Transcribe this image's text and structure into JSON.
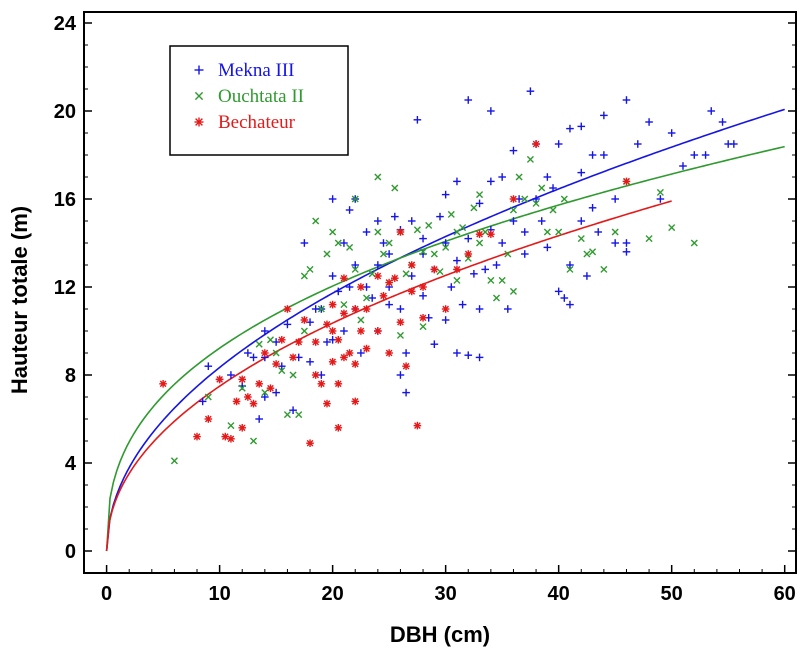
{
  "chart_data": {
    "type": "scatter",
    "xlabel": "DBH (cm)",
    "ylabel": "Hauteur totale (m)",
    "xlim": [
      -2,
      61
    ],
    "ylim": [
      -1,
      24.5
    ],
    "xticks": [
      0,
      10,
      20,
      30,
      40,
      50,
      60
    ],
    "yticks": [
      0,
      4,
      8,
      12,
      16,
      20,
      24
    ],
    "grid": false,
    "legend_position": "top-left",
    "series": [
      {
        "name": "Mekna III",
        "marker": "+",
        "color": "#1515e6",
        "points": [
          [
            8.5,
            6.8
          ],
          [
            9,
            8.4
          ],
          [
            10,
            7.8
          ],
          [
            11,
            8
          ],
          [
            12,
            7.5
          ],
          [
            12.5,
            9
          ],
          [
            13,
            8.8
          ],
          [
            13.5,
            6
          ],
          [
            14,
            7
          ],
          [
            14,
            8.8
          ],
          [
            14,
            10
          ],
          [
            15,
            9.5
          ],
          [
            15,
            7.2
          ],
          [
            15.5,
            8.4
          ],
          [
            16,
            10.3
          ],
          [
            16.5,
            6.4
          ],
          [
            17,
            8.8
          ],
          [
            17.5,
            14
          ],
          [
            18,
            8.6
          ],
          [
            18,
            10.4
          ],
          [
            18.5,
            11
          ],
          [
            19,
            8
          ],
          [
            19,
            11
          ],
          [
            19.5,
            9.5
          ],
          [
            20,
            9.6
          ],
          [
            20,
            12.5
          ],
          [
            20,
            16
          ],
          [
            20.5,
            11.8
          ],
          [
            21,
            10
          ],
          [
            21,
            14
          ],
          [
            21.5,
            15.5
          ],
          [
            21.5,
            12
          ],
          [
            22,
            13
          ],
          [
            22,
            11
          ],
          [
            22,
            16
          ],
          [
            22.5,
            9
          ],
          [
            23,
            14.5
          ],
          [
            23,
            12
          ],
          [
            23.5,
            11.5
          ],
          [
            24,
            13
          ],
          [
            24,
            10
          ],
          [
            24,
            15
          ],
          [
            24.5,
            14
          ],
          [
            25,
            12
          ],
          [
            25,
            11.2
          ],
          [
            25,
            13.5
          ],
          [
            25.5,
            15.2
          ],
          [
            26,
            11
          ],
          [
            26,
            8
          ],
          [
            26,
            14.6
          ],
          [
            26.5,
            9
          ],
          [
            26.5,
            7.2
          ],
          [
            27,
            12.5
          ],
          [
            27,
            15
          ],
          [
            27.5,
            19.6
          ],
          [
            28,
            11.6
          ],
          [
            28,
            13.5
          ],
          [
            28,
            14.2
          ],
          [
            28.5,
            10.6
          ],
          [
            29,
            12.8
          ],
          [
            29,
            9.4
          ],
          [
            29.5,
            15.2
          ],
          [
            30,
            14
          ],
          [
            30,
            10.5
          ],
          [
            30,
            16.2
          ],
          [
            30.5,
            12
          ],
          [
            31,
            13.2
          ],
          [
            31,
            9
          ],
          [
            31,
            16.8
          ],
          [
            31.5,
            11.2
          ],
          [
            32,
            20.5
          ],
          [
            32,
            14.2
          ],
          [
            32,
            8.9
          ],
          [
            32.5,
            12.6
          ],
          [
            33,
            15.8
          ],
          [
            33,
            11
          ],
          [
            33,
            8.8
          ],
          [
            33.5,
            12.8
          ],
          [
            34,
            14.6
          ],
          [
            34,
            16.8
          ],
          [
            34,
            20
          ],
          [
            34.5,
            13
          ],
          [
            35,
            14
          ],
          [
            35,
            17
          ],
          [
            35.5,
            11
          ],
          [
            36,
            18.2
          ],
          [
            36,
            15
          ],
          [
            36.5,
            16
          ],
          [
            37,
            13.5
          ],
          [
            37,
            14.5
          ],
          [
            37.5,
            20.9
          ],
          [
            38,
            16
          ],
          [
            38,
            18.5
          ],
          [
            38.5,
            15
          ],
          [
            39,
            13.8
          ],
          [
            39,
            17
          ],
          [
            39.5,
            16.5
          ],
          [
            40,
            18.5
          ],
          [
            40,
            11.8
          ],
          [
            40.5,
            11.5
          ],
          [
            41,
            19.2
          ],
          [
            41,
            13
          ],
          [
            41,
            11.2
          ],
          [
            42,
            19.3
          ],
          [
            42,
            17.2
          ],
          [
            42,
            15
          ],
          [
            42.5,
            12.5
          ],
          [
            43,
            18
          ],
          [
            43,
            15.6
          ],
          [
            43.5,
            14.5
          ],
          [
            44,
            19.8
          ],
          [
            44,
            18
          ],
          [
            45,
            16
          ],
          [
            45,
            14
          ],
          [
            46,
            20.5
          ],
          [
            46,
            14
          ],
          [
            46,
            13.6
          ],
          [
            47,
            18.5
          ],
          [
            48,
            19.5
          ],
          [
            49,
            16
          ],
          [
            50,
            19
          ],
          [
            51,
            17.5
          ],
          [
            52,
            18
          ],
          [
            53,
            18
          ],
          [
            53.5,
            20
          ],
          [
            54.5,
            19.5
          ],
          [
            55,
            18.5
          ],
          [
            55.5,
            18.5
          ]
        ]
      },
      {
        "name": "Ouchtata II",
        "marker": "x",
        "color": "#2f9a2f",
        "points": [
          [
            6,
            4.1
          ],
          [
            9,
            7
          ],
          [
            11,
            5.7
          ],
          [
            12,
            7.4
          ],
          [
            13,
            5
          ],
          [
            13.5,
            9.4
          ],
          [
            14,
            7.2
          ],
          [
            14.5,
            9.6
          ],
          [
            15,
            9
          ],
          [
            15.5,
            8.2
          ],
          [
            16,
            6.2
          ],
          [
            16.5,
            8
          ],
          [
            17,
            6.2
          ],
          [
            17.5,
            10
          ],
          [
            17.5,
            12.5
          ],
          [
            18,
            12.8
          ],
          [
            18.5,
            15
          ],
          [
            19,
            11
          ],
          [
            19.5,
            13.5
          ],
          [
            20,
            14.5
          ],
          [
            20.5,
            14
          ],
          [
            21,
            11.2
          ],
          [
            21.5,
            13.8
          ],
          [
            22,
            16
          ],
          [
            22,
            12.8
          ],
          [
            22.5,
            10.5
          ],
          [
            23,
            11.5
          ],
          [
            23.5,
            12.6
          ],
          [
            24,
            17
          ],
          [
            24,
            14.5
          ],
          [
            24.5,
            13.5
          ],
          [
            25,
            14
          ],
          [
            25,
            12.2
          ],
          [
            25.5,
            16.5
          ],
          [
            26,
            14.5
          ],
          [
            26,
            9.8
          ],
          [
            26.5,
            12.6
          ],
          [
            27,
            13
          ],
          [
            27.5,
            14.6
          ],
          [
            28,
            13.6
          ],
          [
            28,
            10.2
          ],
          [
            28.5,
            14.8
          ],
          [
            29,
            13.5
          ],
          [
            29.5,
            12.7
          ],
          [
            30,
            13.8
          ],
          [
            30.5,
            15.3
          ],
          [
            31,
            14.5
          ],
          [
            31,
            12.3
          ],
          [
            31.5,
            14.7
          ],
          [
            32,
            13.3
          ],
          [
            32.5,
            15.6
          ],
          [
            33,
            16.2
          ],
          [
            33,
            14
          ],
          [
            33.5,
            14.5
          ],
          [
            34,
            12.3
          ],
          [
            34.5,
            11.5
          ],
          [
            35,
            12.3
          ],
          [
            35.5,
            13.5
          ],
          [
            36,
            15.5
          ],
          [
            36,
            11.8
          ],
          [
            36.5,
            17
          ],
          [
            37,
            16
          ],
          [
            37.5,
            17.8
          ],
          [
            38,
            15.8
          ],
          [
            38.5,
            16.5
          ],
          [
            39,
            14.5
          ],
          [
            39.5,
            15.5
          ],
          [
            40,
            14.5
          ],
          [
            40.5,
            16
          ],
          [
            41,
            12.8
          ],
          [
            42,
            14.2
          ],
          [
            42.5,
            13.5
          ],
          [
            43,
            13.6
          ],
          [
            44,
            12.8
          ],
          [
            45,
            14.5
          ],
          [
            46,
            16.8
          ],
          [
            48,
            14.2
          ],
          [
            49,
            16.3
          ],
          [
            50,
            14.7
          ],
          [
            52,
            14
          ]
        ]
      },
      {
        "name": "Bechateur",
        "marker": "*",
        "color": "#e41a1a",
        "points": [
          [
            5,
            7.6
          ],
          [
            8,
            5.2
          ],
          [
            9,
            6
          ],
          [
            10,
            7.8
          ],
          [
            10.5,
            5.2
          ],
          [
            11,
            5.1
          ],
          [
            11.5,
            6.8
          ],
          [
            12,
            7.8
          ],
          [
            12,
            5.6
          ],
          [
            12.5,
            7
          ],
          [
            13,
            6.7
          ],
          [
            13.5,
            7.6
          ],
          [
            14,
            9
          ],
          [
            14.5,
            7.4
          ],
          [
            15,
            8.5
          ],
          [
            15.5,
            9.6
          ],
          [
            16,
            11
          ],
          [
            16.5,
            8.8
          ],
          [
            17,
            9.5
          ],
          [
            17.5,
            10.5
          ],
          [
            18,
            4.9
          ],
          [
            18.5,
            9.5
          ],
          [
            18.5,
            8
          ],
          [
            19,
            7.6
          ],
          [
            19.5,
            6.7
          ],
          [
            19.5,
            10.3
          ],
          [
            20,
            11.2
          ],
          [
            20,
            8.6
          ],
          [
            20,
            10
          ],
          [
            20.5,
            9.6
          ],
          [
            20.5,
            7.6
          ],
          [
            20.5,
            5.6
          ],
          [
            21,
            12.4
          ],
          [
            21,
            10.8
          ],
          [
            21,
            8.8
          ],
          [
            21.5,
            9
          ],
          [
            22,
            11
          ],
          [
            22,
            8.5
          ],
          [
            22,
            6.8
          ],
          [
            22.5,
            12
          ],
          [
            22.5,
            10
          ],
          [
            23,
            11
          ],
          [
            23,
            9.2
          ],
          [
            24,
            12.5
          ],
          [
            24,
            10
          ],
          [
            24.5,
            11.6
          ],
          [
            25,
            12.2
          ],
          [
            25,
            9
          ],
          [
            25.5,
            12.4
          ],
          [
            26,
            14.5
          ],
          [
            26,
            10.4
          ],
          [
            26.5,
            8.4
          ],
          [
            27,
            13
          ],
          [
            27,
            11.8
          ],
          [
            27.5,
            5.7
          ],
          [
            28,
            12
          ],
          [
            28,
            10.6
          ],
          [
            29,
            12.8
          ],
          [
            30,
            11
          ],
          [
            31,
            12.8
          ],
          [
            32,
            13.5
          ],
          [
            33,
            14.4
          ],
          [
            34,
            14.4
          ],
          [
            36,
            16
          ],
          [
            38,
            18.5
          ],
          [
            46,
            16.8
          ]
        ]
      }
    ],
    "fits": [
      {
        "name": "Mekna III",
        "color": "#1515e6",
        "x_end": 60,
        "a": 2.7,
        "b": 0.49
      },
      {
        "name": "Ouchtata II",
        "color": "#2f9a2f",
        "x_end": 60,
        "a": 3.8,
        "b": 0.385
      },
      {
        "name": "Bechateur",
        "color": "#e41a1a",
        "x_end": 50,
        "a": 2.55,
        "b": 0.468
      }
    ]
  }
}
